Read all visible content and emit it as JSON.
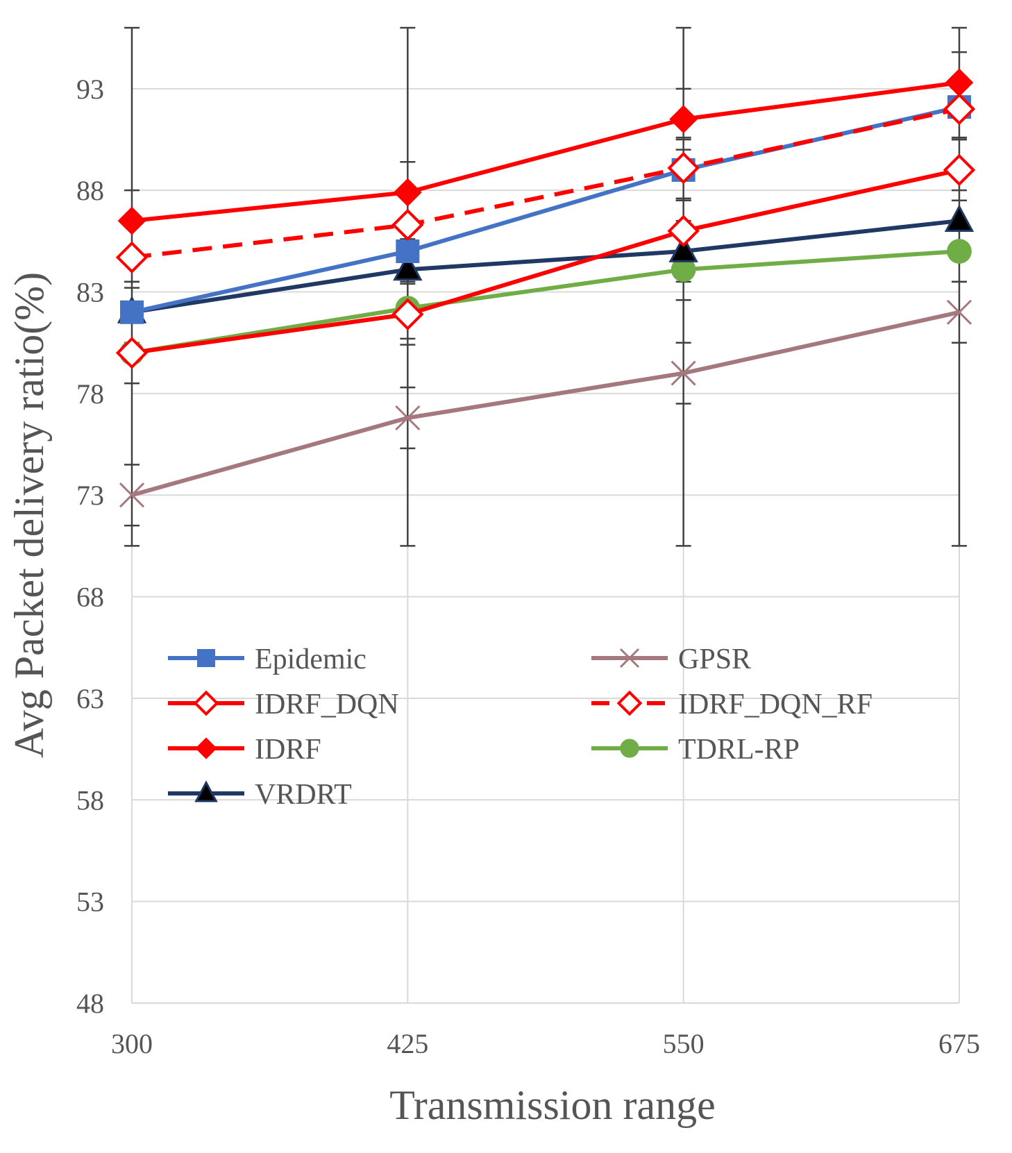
{
  "chart_data": {
    "type": "line",
    "title": "",
    "xlabel": "Transmission range",
    "ylabel": "Avg Packet delivery ratio(%)",
    "x": [
      300,
      425,
      550,
      675
    ],
    "x_tick_labels": [
      "300",
      "425",
      "550",
      "675"
    ],
    "ylim": [
      48,
      96
    ],
    "y_ticks": [
      48,
      53,
      58,
      63,
      68,
      73,
      78,
      83,
      88,
      93
    ],
    "y_tick_labels": [
      "48",
      "53",
      "58",
      "63",
      "68",
      "73",
      "78",
      "83",
      "88",
      "93"
    ],
    "grid": "horizontal",
    "legend_position": "center-left, inside plot, two columns",
    "error_bars": {
      "upper": 96,
      "lower": 70.5
    },
    "series": [
      {
        "name": "Epidemic",
        "values": [
          82,
          85,
          89,
          92.1
        ],
        "color": "#4472c4",
        "marker": "square",
        "dash": "solid"
      },
      {
        "name": "GPSR",
        "values": [
          73,
          76.8,
          79,
          82
        ],
        "color": "#a5787e",
        "marker": "x",
        "dash": "solid"
      },
      {
        "name": "IDRF_DQN",
        "values": [
          80,
          81.9,
          86,
          89
        ],
        "color": "#ff0000",
        "marker": "diamond-open",
        "dash": "solid"
      },
      {
        "name": "IDRF_DQN_RF",
        "values": [
          84.7,
          86.3,
          89.1,
          92
        ],
        "color": "#ff0000",
        "marker": "diamond-open",
        "dash": "dashed"
      },
      {
        "name": "IDRF",
        "values": [
          86.5,
          87.9,
          91.5,
          93.3
        ],
        "color": "#ff0000",
        "marker": "diamond",
        "dash": "solid"
      },
      {
        "name": "TDRL-RP",
        "values": [
          80,
          82.2,
          84.1,
          85
        ],
        "color": "#70ad47",
        "marker": "circle",
        "dash": "solid"
      },
      {
        "name": "VRDRT",
        "values": [
          82,
          84.1,
          85,
          86.5
        ],
        "color": "#1f3864",
        "marker": "triangle",
        "dash": "solid"
      }
    ]
  }
}
